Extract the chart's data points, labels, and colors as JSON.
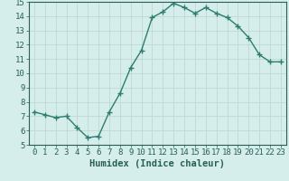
{
  "x": [
    0,
    1,
    2,
    3,
    4,
    5,
    6,
    7,
    8,
    9,
    10,
    11,
    12,
    13,
    14,
    15,
    16,
    17,
    18,
    19,
    20,
    21,
    22,
    23
  ],
  "y": [
    7.3,
    7.1,
    6.9,
    7.0,
    6.2,
    5.5,
    5.6,
    7.3,
    8.6,
    10.4,
    11.6,
    13.9,
    14.3,
    14.9,
    14.6,
    14.2,
    14.6,
    14.2,
    13.9,
    13.3,
    12.5,
    11.3,
    10.8,
    10.8
  ],
  "line_color": "#2d7d70",
  "marker": "+",
  "marker_size": 4,
  "linewidth": 1.0,
  "xlabel": "Humidex (Indice chaleur)",
  "xlim": [
    -0.5,
    23.5
  ],
  "ylim": [
    5,
    15
  ],
  "yticks": [
    5,
    6,
    7,
    8,
    9,
    10,
    11,
    12,
    13,
    14,
    15
  ],
  "xticks": [
    0,
    1,
    2,
    3,
    4,
    5,
    6,
    7,
    8,
    9,
    10,
    11,
    12,
    13,
    14,
    15,
    16,
    17,
    18,
    19,
    20,
    21,
    22,
    23
  ],
  "bg_color": "#d5edeb",
  "grid_color": "#c0d8d4",
  "tick_label_fontsize": 6.5,
  "xlabel_fontsize": 7.5,
  "text_color": "#2a5f58"
}
